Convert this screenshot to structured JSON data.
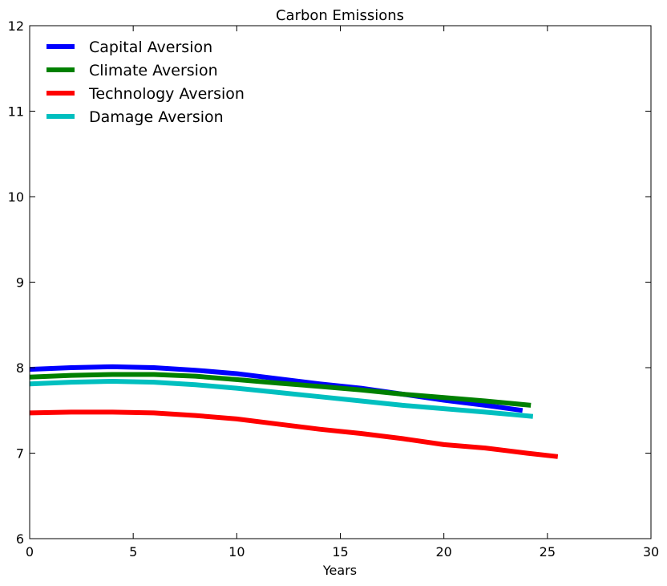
{
  "chart_data": {
    "type": "line",
    "title": "Carbon Emissions",
    "xlabel": "Years",
    "ylabel": "",
    "xlim": [
      0,
      30
    ],
    "ylim": [
      6,
      12
    ],
    "xticks": [
      0,
      5,
      10,
      15,
      20,
      25,
      30
    ],
    "yticks": [
      6,
      7,
      8,
      9,
      10,
      11,
      12
    ],
    "grid": false,
    "legend_position": "top-left",
    "series": [
      {
        "name": "Capital Aversion",
        "color": "#0000ff",
        "x": [
          0,
          2,
          4,
          6,
          8,
          10,
          12,
          14,
          16,
          18,
          20,
          22,
          23.8
        ],
        "y": [
          7.98,
          8.0,
          8.01,
          8.0,
          7.97,
          7.93,
          7.87,
          7.81,
          7.76,
          7.69,
          7.62,
          7.56,
          7.5
        ]
      },
      {
        "name": "Climate Aversion",
        "color": "#008000",
        "x": [
          0,
          2,
          4,
          6,
          8,
          10,
          12,
          14,
          16,
          18,
          20,
          22,
          24.2
        ],
        "y": [
          7.89,
          7.91,
          7.92,
          7.92,
          7.9,
          7.86,
          7.82,
          7.78,
          7.74,
          7.69,
          7.65,
          7.61,
          7.56
        ]
      },
      {
        "name": "Technology Aversion",
        "color": "#ff0000",
        "x": [
          0,
          2,
          4,
          6,
          8,
          10,
          12,
          14,
          16,
          18,
          20,
          22,
          24,
          25.5
        ],
        "y": [
          7.47,
          7.48,
          7.48,
          7.47,
          7.44,
          7.4,
          7.34,
          7.28,
          7.23,
          7.17,
          7.1,
          7.06,
          7.0,
          6.96
        ]
      },
      {
        "name": "Damage Aversion",
        "color": "#00bfbf",
        "x": [
          0,
          2,
          4,
          6,
          8,
          10,
          12,
          14,
          16,
          18,
          20,
          22,
          24.3
        ],
        "y": [
          7.81,
          7.83,
          7.84,
          7.83,
          7.8,
          7.76,
          7.71,
          7.66,
          7.61,
          7.56,
          7.52,
          7.48,
          7.43
        ]
      }
    ]
  }
}
